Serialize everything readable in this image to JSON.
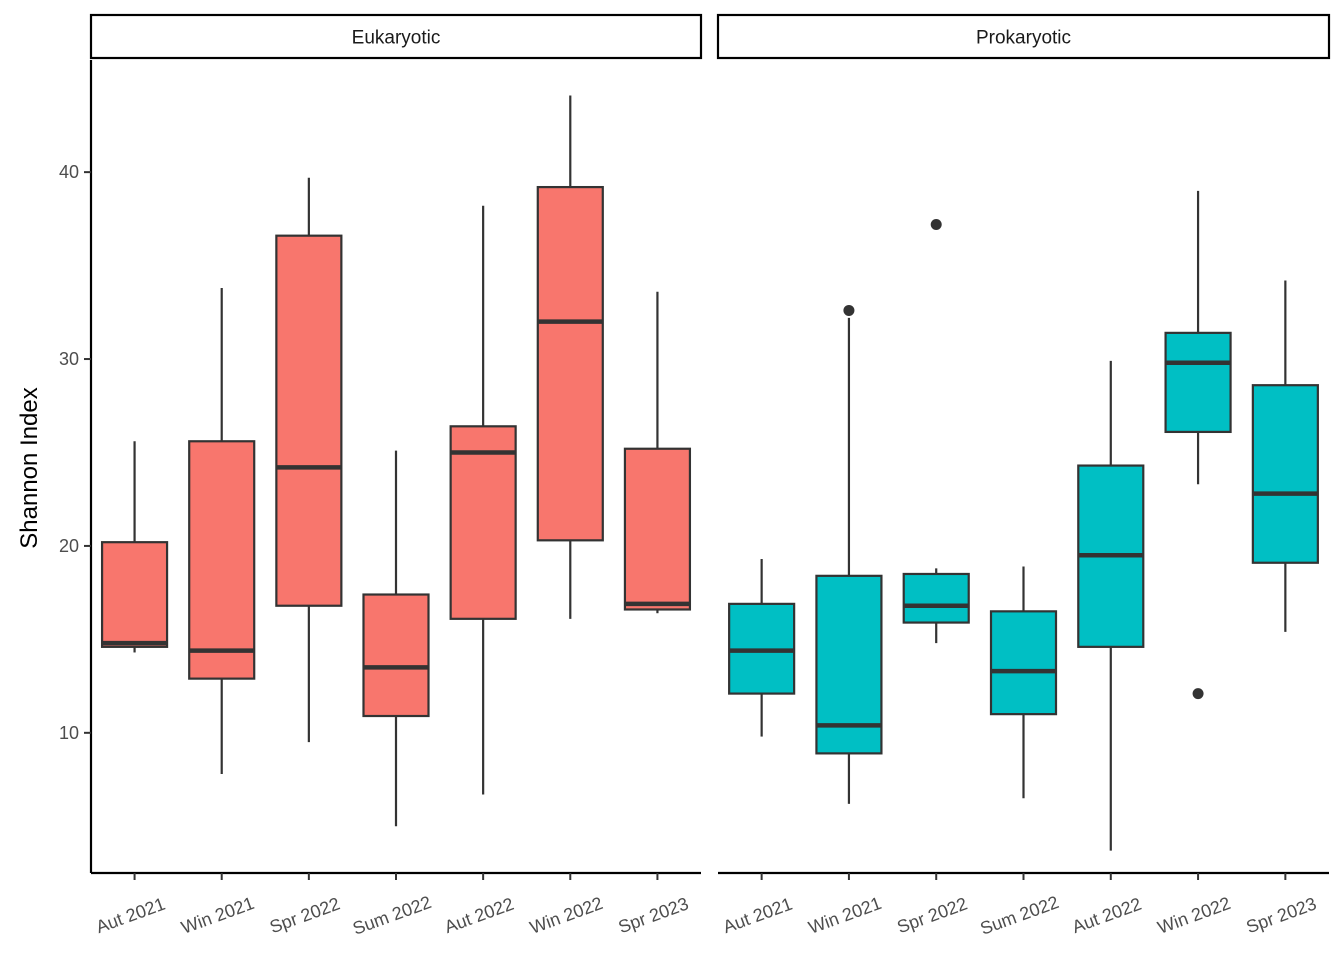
{
  "chart_data": {
    "type": "boxplot",
    "ylabel": "Shannon Index",
    "xlabel": "",
    "ylim": [
      2.5,
      46
    ],
    "yticks": [
      10,
      20,
      30,
      40
    ],
    "grid": false,
    "legend": "none",
    "categories": [
      "Aut 2021",
      "Win 2021",
      "Spr 2022",
      "Sum 2022",
      "Aut 2022",
      "Win 2022",
      "Spr 2023"
    ],
    "panels": [
      {
        "name": "Eukaryotic",
        "color": "#F8766D",
        "boxes": [
          {
            "category": "Aut 2021",
            "whisker_low": 14.3,
            "q1": 14.6,
            "median": 14.8,
            "q3": 20.2,
            "whisker_high": 25.6,
            "outliers": []
          },
          {
            "category": "Win 2021",
            "whisker_low": 7.8,
            "q1": 12.9,
            "median": 14.4,
            "q3": 25.6,
            "whisker_high": 33.8,
            "outliers": []
          },
          {
            "category": "Spr 2022",
            "whisker_low": 9.5,
            "q1": 16.8,
            "median": 24.2,
            "q3": 36.6,
            "whisker_high": 39.7,
            "outliers": []
          },
          {
            "category": "Sum 2022",
            "whisker_low": 5.0,
            "q1": 10.9,
            "median": 13.5,
            "q3": 17.4,
            "whisker_high": 25.1,
            "outliers": []
          },
          {
            "category": "Aut 2022",
            "whisker_low": 6.7,
            "q1": 16.1,
            "median": 25.0,
            "q3": 26.4,
            "whisker_high": 38.2,
            "outliers": []
          },
          {
            "category": "Win 2022",
            "whisker_low": 16.1,
            "q1": 20.3,
            "median": 32.0,
            "q3": 39.2,
            "whisker_high": 44.1,
            "outliers": []
          },
          {
            "category": "Spr 2023",
            "whisker_low": 16.4,
            "q1": 16.6,
            "median": 16.9,
            "q3": 25.2,
            "whisker_high": 33.6,
            "outliers": []
          }
        ]
      },
      {
        "name": "Prokaryotic",
        "color": "#00BFC4",
        "boxes": [
          {
            "category": "Aut 2021",
            "whisker_low": 9.8,
            "q1": 12.1,
            "median": 14.4,
            "q3": 16.9,
            "whisker_high": 19.3,
            "outliers": []
          },
          {
            "category": "Win 2021",
            "whisker_low": 6.2,
            "q1": 8.9,
            "median": 10.4,
            "q3": 18.4,
            "whisker_high": 32.2,
            "outliers": [
              32.6
            ]
          },
          {
            "category": "Spr 2022",
            "whisker_low": 14.8,
            "q1": 15.9,
            "median": 16.8,
            "q3": 18.5,
            "whisker_high": 18.8,
            "outliers": [
              37.2
            ]
          },
          {
            "category": "Sum 2022",
            "whisker_low": 6.5,
            "q1": 11.0,
            "median": 13.3,
            "q3": 16.5,
            "whisker_high": 18.9,
            "outliers": []
          },
          {
            "category": "Aut 2022",
            "whisker_low": 3.7,
            "q1": 14.6,
            "median": 19.5,
            "q3": 24.3,
            "whisker_high": 29.9,
            "outliers": []
          },
          {
            "category": "Win 2022",
            "whisker_low": 23.3,
            "q1": 26.1,
            "median": 29.8,
            "q3": 31.4,
            "whisker_high": 39.0,
            "outliers": [
              12.1
            ]
          },
          {
            "category": "Spr 2023",
            "whisker_low": 15.4,
            "q1": 19.1,
            "median": 22.8,
            "q3": 28.6,
            "whisker_high": 34.2,
            "outliers": []
          }
        ]
      }
    ]
  }
}
